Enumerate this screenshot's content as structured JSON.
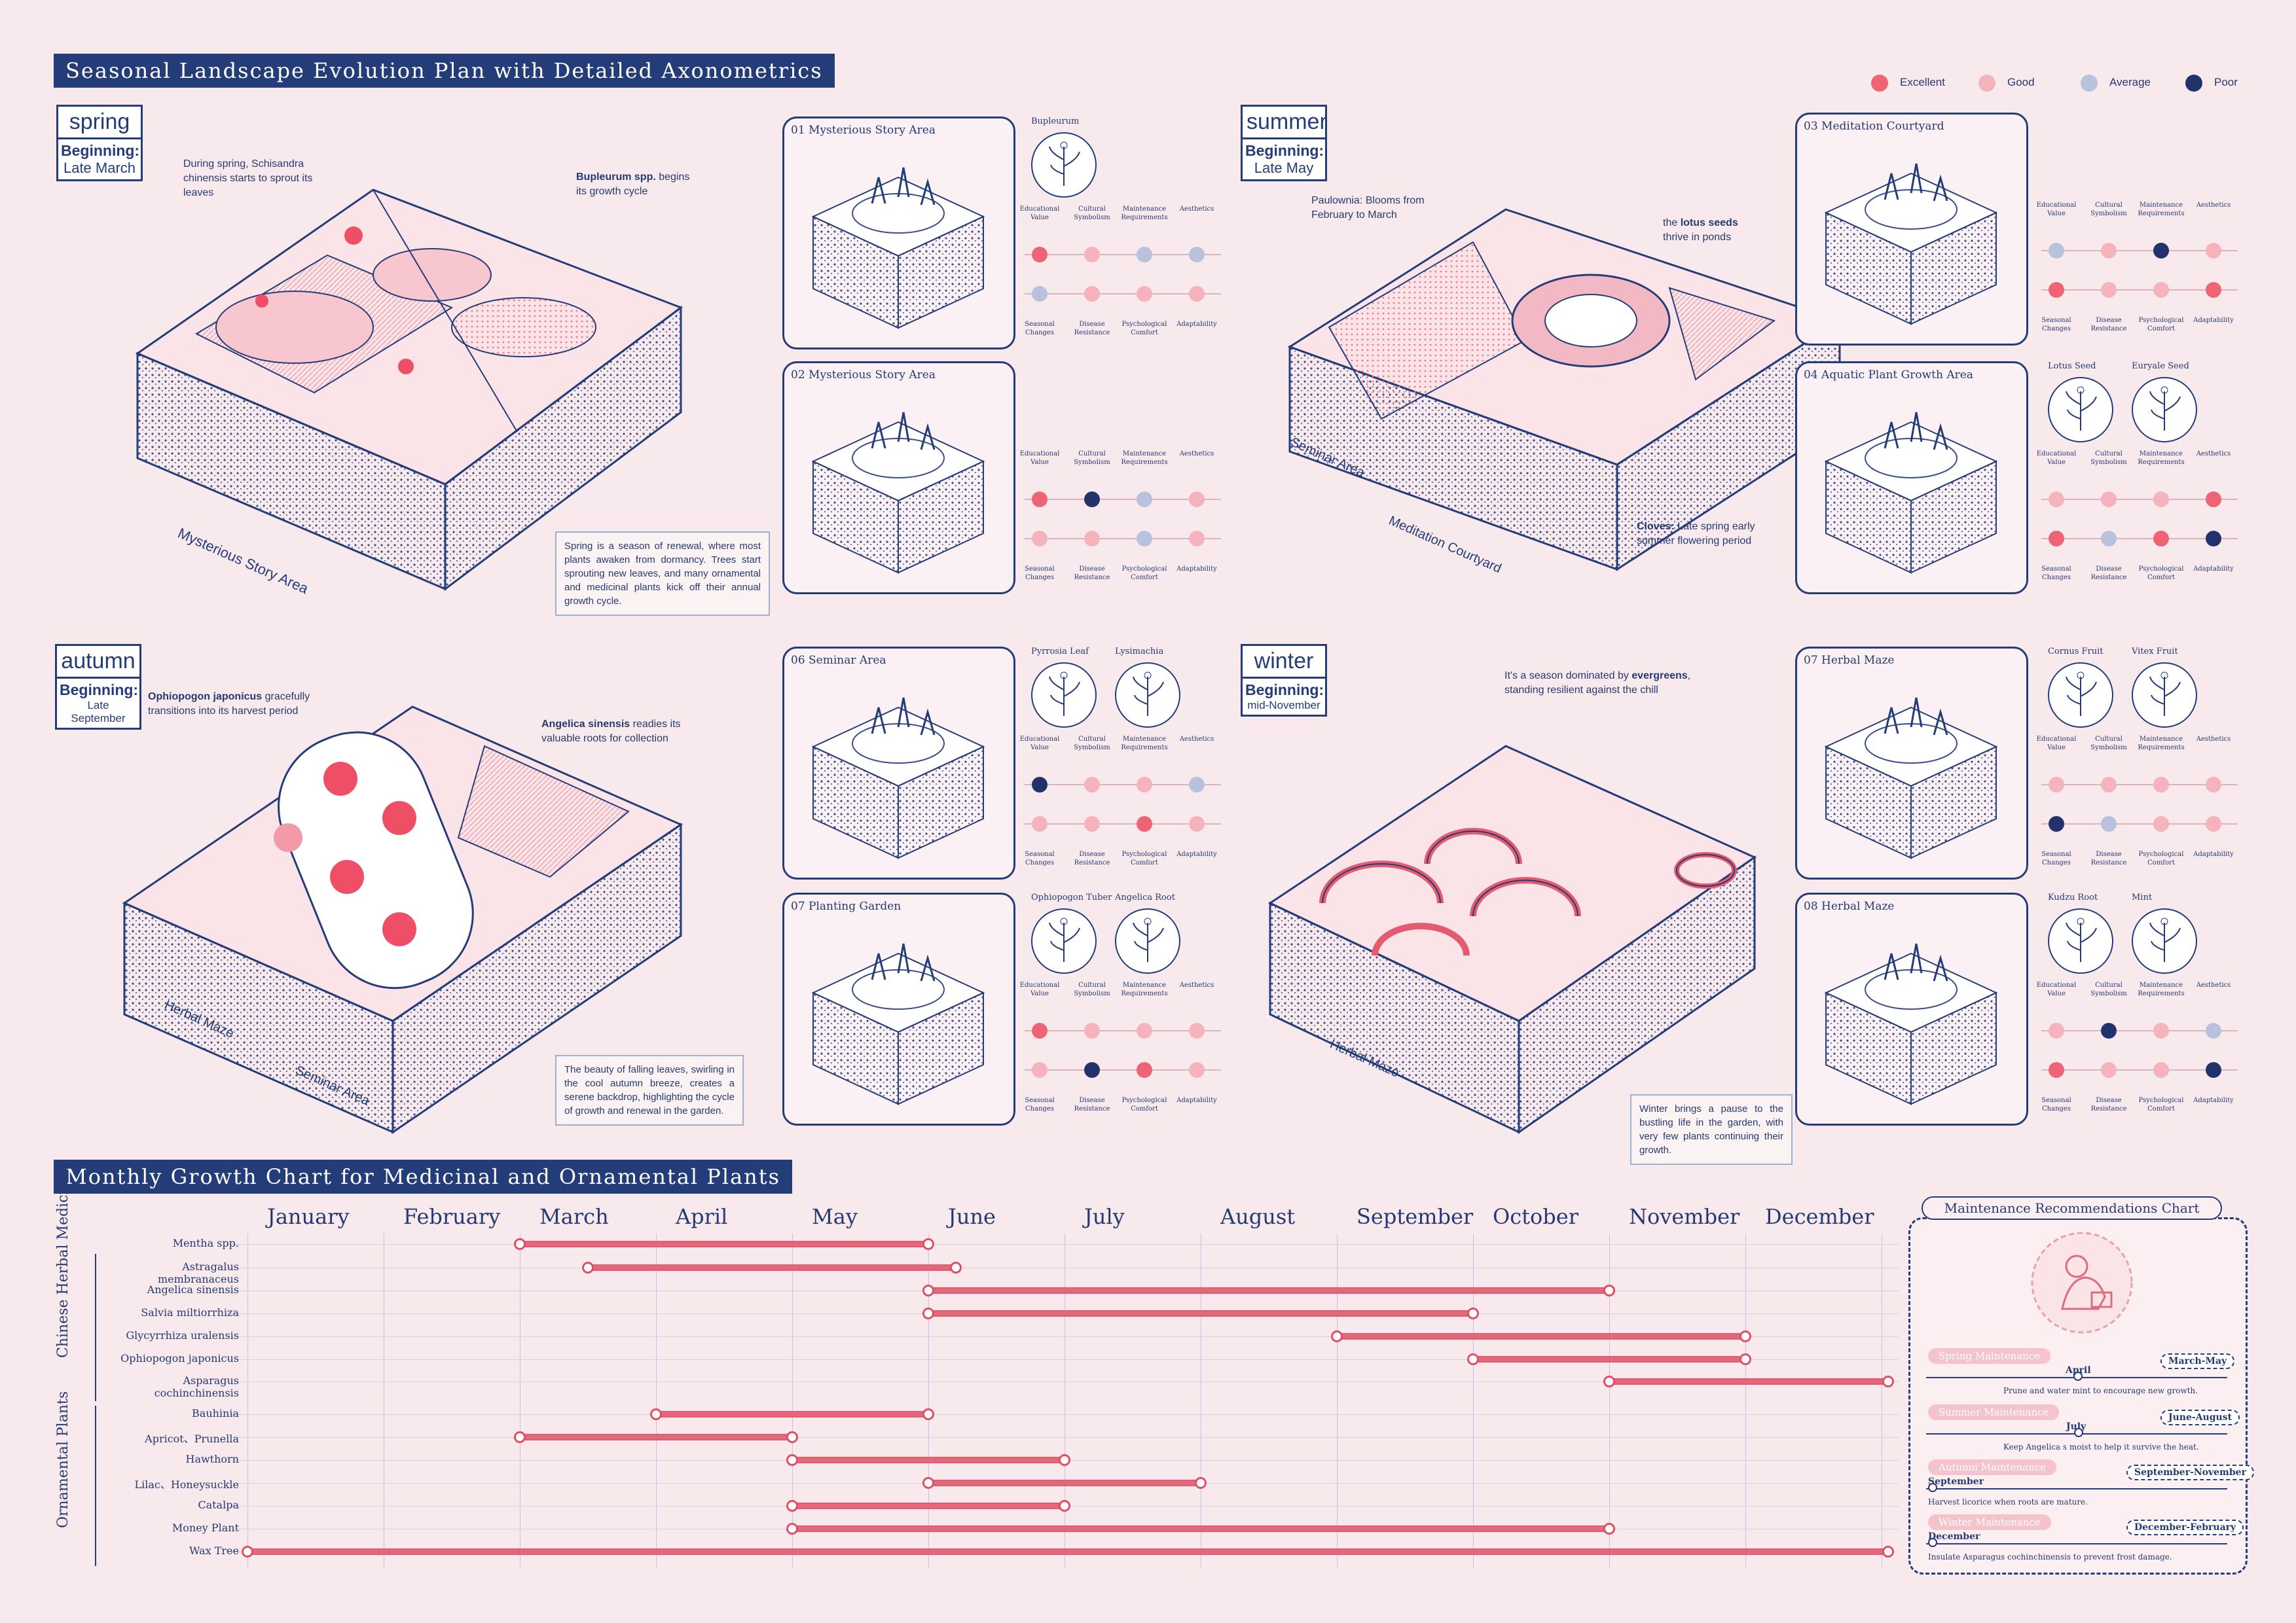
{
  "title": "Seasonal Landscape Evolution Plan with Detailed Axonometrics",
  "legend": [
    {
      "label": "Excellent",
      "color": "#ee6474"
    },
    {
      "label": "Good",
      "color": "#f5b4bd"
    },
    {
      "label": "Average",
      "color": "#b9c2dc"
    },
    {
      "label": "Poor",
      "color": "#22336b"
    }
  ],
  "criteria_top": [
    "Educational Value",
    "Cultural Symbolism",
    "Maintenance Requirements",
    "Aesthetics"
  ],
  "criteria_bottom": [
    "Seasonal Changes",
    "Disease Resistance",
    "Psychological Comfort",
    "Adaptability"
  ],
  "seasons": {
    "spring": {
      "name": "spring",
      "beginning": "Beginning:",
      "date": "Late March",
      "note1": "During spring, Schisandra chinensis starts to sprout its leaves",
      "note2_b": "Bupleurum spp.",
      "note2": " begins its growth cycle",
      "area_label": "Mysterious Story Area",
      "desc": "Spring is a season of renewal, where most plants awaken from dormancy. Trees start sprouting new leaves, and many ornamental and medicinal plants kick off their annual growth cycle."
    },
    "summer": {
      "name": "summer",
      "beginning": "Beginning:",
      "date": "Late May",
      "note1": "Paulownia: Blooms from February to March",
      "note2_a": "the ",
      "note2_b": "lotus seeds",
      "note2": " thrive in ponds",
      "note3_b": "Cloves:",
      "note3": " Late spring early summer flowering period",
      "area_label1": "Seminar Area",
      "area_label2": "Meditation Courtyard"
    },
    "autumn": {
      "name": "autumn",
      "beginning": "Beginning:",
      "date": "Late September",
      "note1_b": "Ophiopogon japonicus",
      "note1": " gracefully transitions into its harvest period",
      "note2_b": "Angelica sinensis",
      "note2": " readies its valuable roots for collection",
      "area_label1": "Herbal Maze",
      "area_label2": "Seminar Area",
      "desc": "The beauty of falling leaves, swirling in the cool autumn breeze, creates a serene backdrop, highlighting the cycle of growth and renewal in the garden."
    },
    "winter": {
      "name": "winter",
      "beginning": "Beginning:",
      "date": "mid-November",
      "note1_a": "It's a season dominated by ",
      "note1_b": "evergreens",
      "note1": ", standing resilient against the chill",
      "area_label": "Herbal Maze",
      "desc": "Winter brings a pause to the bustling life in the garden, with very few plants continuing their growth."
    }
  },
  "cards": [
    {
      "title": "01 Mysterious Story Area",
      "plants": [
        "Bupleurum"
      ],
      "row1": [
        "excellent",
        "good",
        "average",
        "average"
      ],
      "row2": [
        "average",
        "good",
        "good",
        "good"
      ]
    },
    {
      "title": "02 Mysterious Story Area",
      "plants": [],
      "row1": [
        "excellent",
        "poor",
        "average",
        "good"
      ],
      "row2": [
        "good",
        "good",
        "average",
        "good"
      ]
    },
    {
      "title": "03 Meditation Courtyard",
      "plants": [],
      "row1": [
        "average",
        "good",
        "poor",
        "good"
      ],
      "row2": [
        "excellent",
        "good",
        "good",
        "excellent"
      ]
    },
    {
      "title": "04 Aquatic Plant Growth Area",
      "plants": [
        "Lotus Seed",
        "Euryale Seed"
      ],
      "row1": [
        "good",
        "good",
        "good",
        "excellent"
      ],
      "row2": [
        "excellent",
        "average",
        "excellent",
        "poor"
      ]
    },
    {
      "title": "06 Seminar Area",
      "plants": [
        "Pyrrosia Leaf",
        "Lysimachia"
      ],
      "row1": [
        "poor",
        "good",
        "good",
        "average"
      ],
      "row2": [
        "good",
        "good",
        "excellent",
        "good"
      ]
    },
    {
      "title": "07 Planting Garden",
      "plants": [
        "Ophiopogon Tuber",
        "Angelica Root"
      ],
      "row1": [
        "excellent",
        "good",
        "good",
        "good"
      ],
      "row2": [
        "good",
        "poor",
        "excellent",
        "good"
      ]
    },
    {
      "title": "07 Herbal Maze",
      "plants": [
        "Cornus Fruit",
        "Vitex Fruit"
      ],
      "row1": [
        "good",
        "good",
        "good",
        "good"
      ],
      "row2": [
        "poor",
        "average",
        "good",
        "good"
      ]
    },
    {
      "title": "08 Herbal Maze",
      "plants": [
        "Kudzu Root",
        "Mint"
      ],
      "row1": [
        "good",
        "poor",
        "good",
        "average"
      ],
      "row2": [
        "excellent",
        "good",
        "good",
        "poor"
      ]
    }
  ],
  "growth": {
    "title": "Monthly Growth Chart for Medicinal and Ornamental Plants",
    "months": [
      "January",
      "February",
      "March",
      "April",
      "May",
      "June",
      "July",
      "August",
      "September",
      "October",
      "November",
      "December"
    ],
    "group1": "Chinese Herbal Medicines",
    "group2": "Ornamental Plants",
    "plants": [
      {
        "name": "Mentha spp.",
        "start": 3,
        "end": 6
      },
      {
        "name": "Astragalus membranaceus",
        "start": 3.5,
        "end": 6.2
      },
      {
        "name": "Angelica sinensis",
        "start": 6,
        "end": 11
      },
      {
        "name": "Salvia miltiorrhiza",
        "start": 6,
        "end": 10
      },
      {
        "name": "Glycyrrhiza uralensis",
        "start": 9,
        "end": 12
      },
      {
        "name": "Ophiopogon japonicus",
        "start": 10,
        "end": 12
      },
      {
        "name": "Asparagus cochinchinensis",
        "start": 11,
        "end": 13.2
      },
      {
        "name": "Bauhinia",
        "start": 4,
        "end": 6
      },
      {
        "name": "Apricot、Prunella",
        "start": 3,
        "end": 5
      },
      {
        "name": "Hawthorn",
        "start": 5,
        "end": 7
      },
      {
        "name": "Lilac、Honeysuckle",
        "start": 6,
        "end": 8
      },
      {
        "name": "Catalpa",
        "start": 5,
        "end": 7
      },
      {
        "name": "Money Plant",
        "start": 5,
        "end": 11
      },
      {
        "name": "Wax Tree",
        "start": 1,
        "end": 13.2
      }
    ]
  },
  "maintenance": {
    "title": "Maintenance Recommendations Chart",
    "items": [
      {
        "season": "Spring Maintenance",
        "range": "March-May",
        "month": "April",
        "text": "Prune and water mint to encourage new growth."
      },
      {
        "season": "Summer Maintenance",
        "range": "June-August",
        "month": "July",
        "text": "Keep Angelica s moist to help it survive the heat."
      },
      {
        "season": "Autumn Maintenance",
        "range": "September-November",
        "month": "September",
        "text": "Harvest licorice when roots are mature."
      },
      {
        "season": "Winter Maintenance",
        "range": "December-February",
        "month": "December",
        "text": "Insulate Asparagus cochinchinensis to prevent frost damage."
      }
    ]
  }
}
